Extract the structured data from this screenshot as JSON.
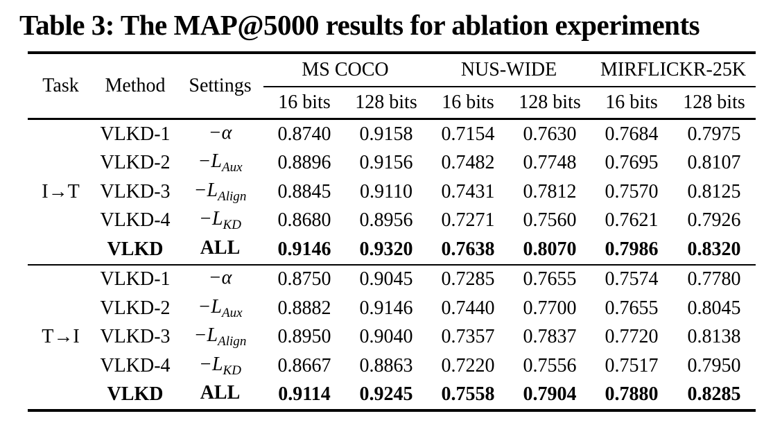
{
  "title": "Table 3: The MAP@5000 results for ablation experiments",
  "colors": {
    "text": "#000000",
    "background": "#ffffff"
  },
  "table": {
    "headers": {
      "task": "Task",
      "method": "Method",
      "settings": "Settings"
    },
    "datasets": [
      {
        "name": "MS COCO",
        "subs": [
          "16 bits",
          "128 bits"
        ]
      },
      {
        "name": "NUS-WIDE",
        "subs": [
          "16 bits",
          "128 bits"
        ]
      },
      {
        "name": "MIRFLICKR-25K",
        "subs": [
          "16 bits",
          "128 bits"
        ]
      }
    ],
    "blocks": [
      {
        "task": "I→T",
        "rows": [
          {
            "method": "VLKD-1",
            "setting": {
              "base": "−α",
              "sub": ""
            },
            "bold": false,
            "values": [
              "0.8740",
              "0.9158",
              "0.7154",
              "0.7630",
              "0.7684",
              "0.7975"
            ]
          },
          {
            "method": "VLKD-2",
            "setting": {
              "base": "−L",
              "sub": "Aux"
            },
            "bold": false,
            "values": [
              "0.8896",
              "0.9156",
              "0.7482",
              "0.7748",
              "0.7695",
              "0.8107"
            ]
          },
          {
            "method": "VLKD-3",
            "setting": {
              "base": "−L",
              "sub": "Align"
            },
            "bold": false,
            "values": [
              "0.8845",
              "0.9110",
              "0.7431",
              "0.7812",
              "0.7570",
              "0.8125"
            ]
          },
          {
            "method": "VLKD-4",
            "setting": {
              "base": "−L",
              "sub": "KD"
            },
            "bold": false,
            "values": [
              "0.8680",
              "0.8956",
              "0.7271",
              "0.7560",
              "0.7621",
              "0.7926"
            ]
          },
          {
            "method": "VLKD",
            "setting": {
              "base": "ALL",
              "sub": ""
            },
            "bold": true,
            "values": [
              "0.9146",
              "0.9320",
              "0.7638",
              "0.8070",
              "0.7986",
              "0.8320"
            ]
          }
        ]
      },
      {
        "task": "T→I",
        "rows": [
          {
            "method": "VLKD-1",
            "setting": {
              "base": "−α",
              "sub": ""
            },
            "bold": false,
            "values": [
              "0.8750",
              "0.9045",
              "0.7285",
              "0.7655",
              "0.7574",
              "0.7780"
            ]
          },
          {
            "method": "VLKD-2",
            "setting": {
              "base": "−L",
              "sub": "Aux"
            },
            "bold": false,
            "values": [
              "0.8882",
              "0.9146",
              "0.7440",
              "0.7700",
              "0.7655",
              "0.8045"
            ]
          },
          {
            "method": "VLKD-3",
            "setting": {
              "base": "−L",
              "sub": "Align"
            },
            "bold": false,
            "values": [
              "0.8950",
              "0.9040",
              "0.7357",
              "0.7837",
              "0.7720",
              "0.8138"
            ]
          },
          {
            "method": "VLKD-4",
            "setting": {
              "base": "−L",
              "sub": "KD"
            },
            "bold": false,
            "values": [
              "0.8667",
              "0.8863",
              "0.7220",
              "0.7556",
              "0.7517",
              "0.7950"
            ]
          },
          {
            "method": "VLKD",
            "setting": {
              "base": "ALL",
              "sub": ""
            },
            "bold": true,
            "values": [
              "0.9114",
              "0.9245",
              "0.7558",
              "0.7904",
              "0.7880",
              "0.8285"
            ]
          }
        ]
      }
    ]
  }
}
